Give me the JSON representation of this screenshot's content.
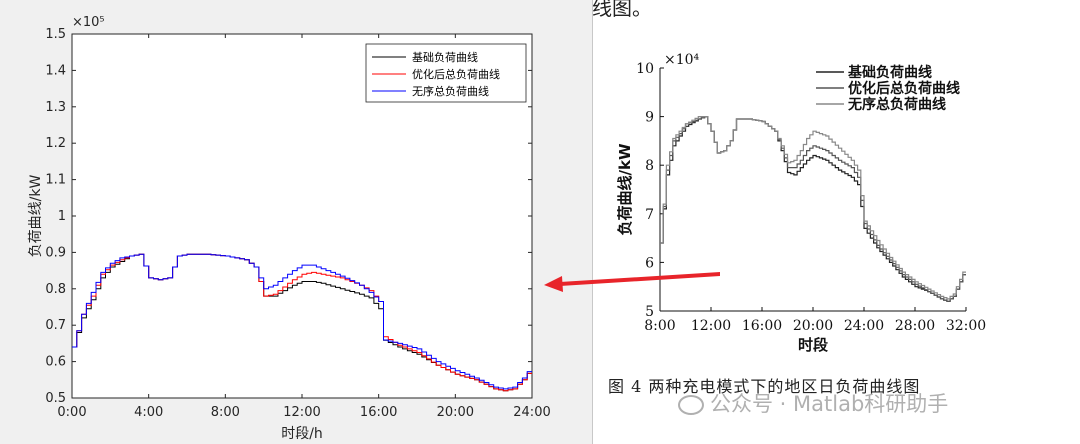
{
  "page_fragment": "线图。",
  "caption": "图 4   两种充电模式下的地区日负荷曲线图",
  "watermark": "公众号 · Matlab科研助手",
  "colors": {
    "base": "#000000",
    "optimized": "#ff0000",
    "unordered": "#0000ff",
    "arrow": "#e8242a"
  },
  "chart_data": [
    {
      "type": "line",
      "title": "",
      "xlabel": "时段/h",
      "ylabel": "负荷曲线/kW",
      "exponent_label": "×10⁵",
      "xlim": [
        0,
        24
      ],
      "ylim": [
        0.5,
        1.5
      ],
      "xticks": [
        0,
        4,
        8,
        12,
        16,
        20,
        24
      ],
      "xtick_labels": [
        "0:00",
        "4:00",
        "8:00",
        "12:00",
        "16:00",
        "20:00",
        "24:00"
      ],
      "yticks": [
        0.5,
        0.6,
        0.7,
        0.8,
        0.9,
        1.0,
        1.1,
        1.2,
        1.3,
        1.4,
        1.5
      ],
      "ytick_labels": [
        "0.5",
        "0.6",
        "0.7",
        "0.8",
        "0.9",
        "1",
        "1.1",
        "1.2",
        "1.3",
        "1.4",
        "1.5"
      ],
      "legend_position": "top-right",
      "step_hours": 0.25,
      "series": [
        {
          "name": "基础负荷曲线",
          "color": "#000000",
          "points": [
            [
              0,
              0.64
            ],
            [
              0.5,
              0.72
            ],
            [
              1,
              0.77
            ],
            [
              1.5,
              0.83
            ],
            [
              2,
              0.86
            ],
            [
              2.5,
              0.875
            ],
            [
              3,
              0.89
            ],
            [
              3.5,
              0.895
            ],
            [
              4,
              0.83
            ],
            [
              4.5,
              0.825
            ],
            [
              5,
              0.83
            ],
            [
              5.5,
              0.89
            ],
            [
              6,
              0.895
            ],
            [
              7,
              0.895
            ],
            [
              8,
              0.89
            ],
            [
              8.5,
              0.885
            ],
            [
              9,
              0.88
            ],
            [
              9.5,
              0.86
            ],
            [
              10,
              0.78
            ],
            [
              10.5,
              0.78
            ],
            [
              11,
              0.795
            ],
            [
              11.5,
              0.81
            ],
            [
              12,
              0.82
            ],
            [
              12.5,
              0.82
            ],
            [
              13,
              0.815
            ],
            [
              14,
              0.8
            ],
            [
              15,
              0.785
            ],
            [
              15.5,
              0.775
            ],
            [
              16,
              0.745
            ],
            [
              16.2,
              0.66
            ],
            [
              17,
              0.64
            ],
            [
              18,
              0.62
            ],
            [
              19,
              0.59
            ],
            [
              20,
              0.565
            ],
            [
              21,
              0.55
            ],
            [
              22,
              0.525
            ],
            [
              22.5,
              0.52
            ],
            [
              23,
              0.525
            ],
            [
              23.5,
              0.55
            ],
            [
              24,
              0.585
            ]
          ]
        },
        {
          "name": "优化后总负荷曲线",
          "color": "#ff0000",
          "points": [
            [
              0,
              0.64
            ],
            [
              0.5,
              0.73
            ],
            [
              1,
              0.78
            ],
            [
              1.5,
              0.84
            ],
            [
              2,
              0.865
            ],
            [
              2.5,
              0.88
            ],
            [
              3,
              0.89
            ],
            [
              3.5,
              0.895
            ],
            [
              4,
              0.83
            ],
            [
              4.5,
              0.825
            ],
            [
              5,
              0.83
            ],
            [
              5.5,
              0.89
            ],
            [
              6,
              0.895
            ],
            [
              7,
              0.895
            ],
            [
              8,
              0.89
            ],
            [
              8.5,
              0.885
            ],
            [
              9,
              0.88
            ],
            [
              9.5,
              0.86
            ],
            [
              10,
              0.78
            ],
            [
              10.5,
              0.785
            ],
            [
              11,
              0.805
            ],
            [
              11.5,
              0.825
            ],
            [
              12,
              0.84
            ],
            [
              12.5,
              0.845
            ],
            [
              13,
              0.84
            ],
            [
              14,
              0.83
            ],
            [
              15,
              0.81
            ],
            [
              15.5,
              0.795
            ],
            [
              16,
              0.765
            ],
            [
              16.2,
              0.67
            ],
            [
              17,
              0.645
            ],
            [
              18,
              0.625
            ],
            [
              19,
              0.59
            ],
            [
              20,
              0.565
            ],
            [
              21,
              0.55
            ],
            [
              22,
              0.525
            ],
            [
              22.5,
              0.52
            ],
            [
              23,
              0.525
            ],
            [
              23.5,
              0.55
            ],
            [
              24,
              0.585
            ]
          ]
        },
        {
          "name": "无序总负荷曲线",
          "color": "#0000ff",
          "points": [
            [
              0,
              0.64
            ],
            [
              0.5,
              0.73
            ],
            [
              1,
              0.79
            ],
            [
              1.5,
              0.845
            ],
            [
              2,
              0.87
            ],
            [
              2.5,
              0.885
            ],
            [
              3,
              0.89
            ],
            [
              3.5,
              0.895
            ],
            [
              4,
              0.83
            ],
            [
              4.5,
              0.825
            ],
            [
              5,
              0.83
            ],
            [
              5.5,
              0.89
            ],
            [
              6,
              0.895
            ],
            [
              7,
              0.895
            ],
            [
              8,
              0.89
            ],
            [
              8.5,
              0.885
            ],
            [
              9,
              0.88
            ],
            [
              9.5,
              0.86
            ],
            [
              10,
              0.8
            ],
            [
              10.5,
              0.81
            ],
            [
              11,
              0.83
            ],
            [
              11.5,
              0.85
            ],
            [
              12,
              0.865
            ],
            [
              12.5,
              0.865
            ],
            [
              13,
              0.855
            ],
            [
              14,
              0.835
            ],
            [
              15,
              0.81
            ],
            [
              15.5,
              0.79
            ],
            [
              16,
              0.765
            ],
            [
              16.2,
              0.66
            ],
            [
              17,
              0.65
            ],
            [
              18,
              0.635
            ],
            [
              19,
              0.6
            ],
            [
              20,
              0.575
            ],
            [
              21,
              0.555
            ],
            [
              22,
              0.53
            ],
            [
              22.5,
              0.525
            ],
            [
              23,
              0.53
            ],
            [
              23.5,
              0.555
            ],
            [
              24,
              0.59
            ]
          ]
        }
      ]
    },
    {
      "type": "line",
      "title": "",
      "xlabel": "时段",
      "ylabel": "负荷曲线/kW",
      "exponent_label": "×10⁴",
      "xlim": [
        8,
        32
      ],
      "ylim": [
        5,
        10
      ],
      "xticks": [
        8,
        12,
        16,
        20,
        24,
        28,
        32
      ],
      "xtick_labels": [
        "8:00",
        "12:00",
        "16:00",
        "20:00",
        "24:00",
        "28:00",
        "32:00"
      ],
      "yticks": [
        5,
        6,
        7,
        8,
        9,
        10
      ],
      "ytick_labels": [
        "5",
        "6",
        "7",
        "8",
        "9",
        "10"
      ],
      "legend_position": "top-right",
      "step_hours": 0.25,
      "series": [
        {
          "name": "基础负荷曲线",
          "color": "#222222",
          "points": [
            [
              8,
              6.4
            ],
            [
              8.5,
              7.8
            ],
            [
              9,
              8.4
            ],
            [
              9.5,
              8.6
            ],
            [
              10,
              8.8
            ],
            [
              11,
              8.95
            ],
            [
              11.5,
              9.0
            ],
            [
              12,
              8.7
            ],
            [
              12.5,
              8.25
            ],
            [
              13,
              8.3
            ],
            [
              13.5,
              8.5
            ],
            [
              14,
              8.95
            ],
            [
              15,
              8.95
            ],
            [
              16,
              8.9
            ],
            [
              17,
              8.7
            ],
            [
              17.5,
              8.3
            ],
            [
              18,
              7.85
            ],
            [
              18.5,
              7.8
            ],
            [
              19,
              7.95
            ],
            [
              19.5,
              8.1
            ],
            [
              20,
              8.2
            ],
            [
              21,
              8.1
            ],
            [
              22,
              7.9
            ],
            [
              23,
              7.75
            ],
            [
              23.5,
              7.6
            ],
            [
              24,
              6.7
            ],
            [
              25,
              6.3
            ],
            [
              26,
              6.0
            ],
            [
              27,
              5.7
            ],
            [
              28,
              5.5
            ],
            [
              29,
              5.4
            ],
            [
              30,
              5.25
            ],
            [
              30.5,
              5.2
            ],
            [
              31,
              5.3
            ],
            [
              31.5,
              5.6
            ],
            [
              32,
              5.9
            ]
          ]
        },
        {
          "name": "优化后总负荷曲线",
          "color": "#555555",
          "points": [
            [
              8,
              6.4
            ],
            [
              8.5,
              7.9
            ],
            [
              9,
              8.5
            ],
            [
              9.5,
              8.65
            ],
            [
              10,
              8.85
            ],
            [
              11,
              8.95
            ],
            [
              11.5,
              9.0
            ],
            [
              12,
              8.7
            ],
            [
              12.5,
              8.25
            ],
            [
              13,
              8.3
            ],
            [
              13.5,
              8.5
            ],
            [
              14,
              8.95
            ],
            [
              15,
              8.95
            ],
            [
              16,
              8.9
            ],
            [
              17,
              8.7
            ],
            [
              17.5,
              8.35
            ],
            [
              18,
              7.95
            ],
            [
              18.5,
              7.95
            ],
            [
              19,
              8.1
            ],
            [
              19.5,
              8.3
            ],
            [
              20,
              8.4
            ],
            [
              21,
              8.3
            ],
            [
              22,
              8.1
            ],
            [
              23,
              7.95
            ],
            [
              23.5,
              7.75
            ],
            [
              24,
              6.8
            ],
            [
              25,
              6.35
            ],
            [
              26,
              6.05
            ],
            [
              27,
              5.75
            ],
            [
              28,
              5.55
            ],
            [
              29,
              5.4
            ],
            [
              30,
              5.25
            ],
            [
              30.5,
              5.2
            ],
            [
              31,
              5.3
            ],
            [
              31.5,
              5.6
            ],
            [
              32,
              5.9
            ]
          ]
        },
        {
          "name": "无序总负荷曲线",
          "color": "#888888",
          "points": [
            [
              8,
              6.4
            ],
            [
              8.5,
              8.0
            ],
            [
              9,
              8.55
            ],
            [
              9.5,
              8.7
            ],
            [
              10,
              8.85
            ],
            [
              11,
              9.0
            ],
            [
              11.5,
              9.0
            ],
            [
              12,
              8.7
            ],
            [
              12.5,
              8.25
            ],
            [
              13,
              8.3
            ],
            [
              13.5,
              8.5
            ],
            [
              14,
              8.95
            ],
            [
              15,
              8.95
            ],
            [
              16,
              8.9
            ],
            [
              17,
              8.7
            ],
            [
              17.5,
              8.4
            ],
            [
              18,
              8.05
            ],
            [
              18.5,
              8.1
            ],
            [
              19,
              8.3
            ],
            [
              19.5,
              8.55
            ],
            [
              20,
              8.7
            ],
            [
              21,
              8.6
            ],
            [
              22,
              8.35
            ],
            [
              23,
              8.1
            ],
            [
              23.5,
              7.9
            ],
            [
              24,
              6.85
            ],
            [
              25,
              6.45
            ],
            [
              26,
              6.1
            ],
            [
              27,
              5.8
            ],
            [
              28,
              5.6
            ],
            [
              29,
              5.45
            ],
            [
              30,
              5.3
            ],
            [
              30.5,
              5.25
            ],
            [
              31,
              5.35
            ],
            [
              31.5,
              5.65
            ],
            [
              32,
              5.95
            ]
          ]
        }
      ]
    }
  ]
}
